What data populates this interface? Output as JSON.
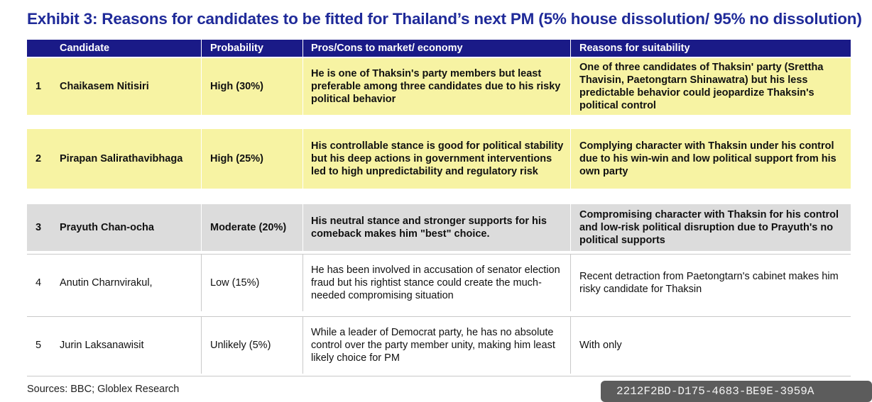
{
  "title": "Exhibit 3:  Reasons for candidates to be fitted for Thailand’s next PM (5% house dissolution/ 95% no dissolution)",
  "headers": {
    "candidate": "Candidate",
    "probability": "Probability",
    "pros_cons": "Pros/Cons to market/ economy",
    "reasons": "Reasons for suitability"
  },
  "colors": {
    "title": "#1f2a99",
    "header_bg": "#1a1a87",
    "row_yellow": "#f7f3a3",
    "row_gray": "#dcdcdc"
  },
  "rows": [
    {
      "num": "1",
      "name": "Chaikasem Nitisiri",
      "probability": "High (30%)",
      "pros_cons": "He is one of Thaksin's party members but least preferable among three candidates due to his risky political behavior",
      "reasons": "One of three candidates of Thaksin' party (Srettha Thavisin, Paetongtarn Shinawatra) but his less predictable behavior could jeopardize Thaksin's political control"
    },
    {
      "num": "2",
      "name": "Pirapan Salirathavibhaga",
      "probability": "High (25%)",
      "pros_cons": "His controllable stance is good for political stability but his deep actions in government interventions led to high unpredictability and regulatory risk",
      "reasons": "Complying character with Thaksin under his control due to his win-win and low political support from his own party"
    },
    {
      "num": "3",
      "name": "Prayuth Chan-ocha",
      "probability": "Moderate (20%)",
      "pros_cons": "His neutral stance and stronger supports for his comeback makes him \"best\" choice.",
      "reasons": "Compromising character with Thaksin for his control and low-risk political disruption due to Prayuth's no political supports"
    },
    {
      "num": "4",
      "name": "Anutin Charnvirakul,",
      "probability": "Low (15%)",
      "pros_cons": "He has been involved in accusation of senator election fraud but his rightist stance could create the much-needed compromising situation",
      "reasons": "Recent detraction from Paetongtarn's cabinet makes him risky candidate for Thaksin"
    },
    {
      "num": "5",
      "name": "Jurin Laksanawisit",
      "probability": "Unlikely (5%)",
      "pros_cons": "While a leader of Democrat party, he has no absolute control over the party member unity, making him least likely choice for PM",
      "reasons": "With only"
    }
  ],
  "source": "Sources: BBC; Globlex Research",
  "watermark": "2212F2BD-D175-4683-BE9E-3959A"
}
